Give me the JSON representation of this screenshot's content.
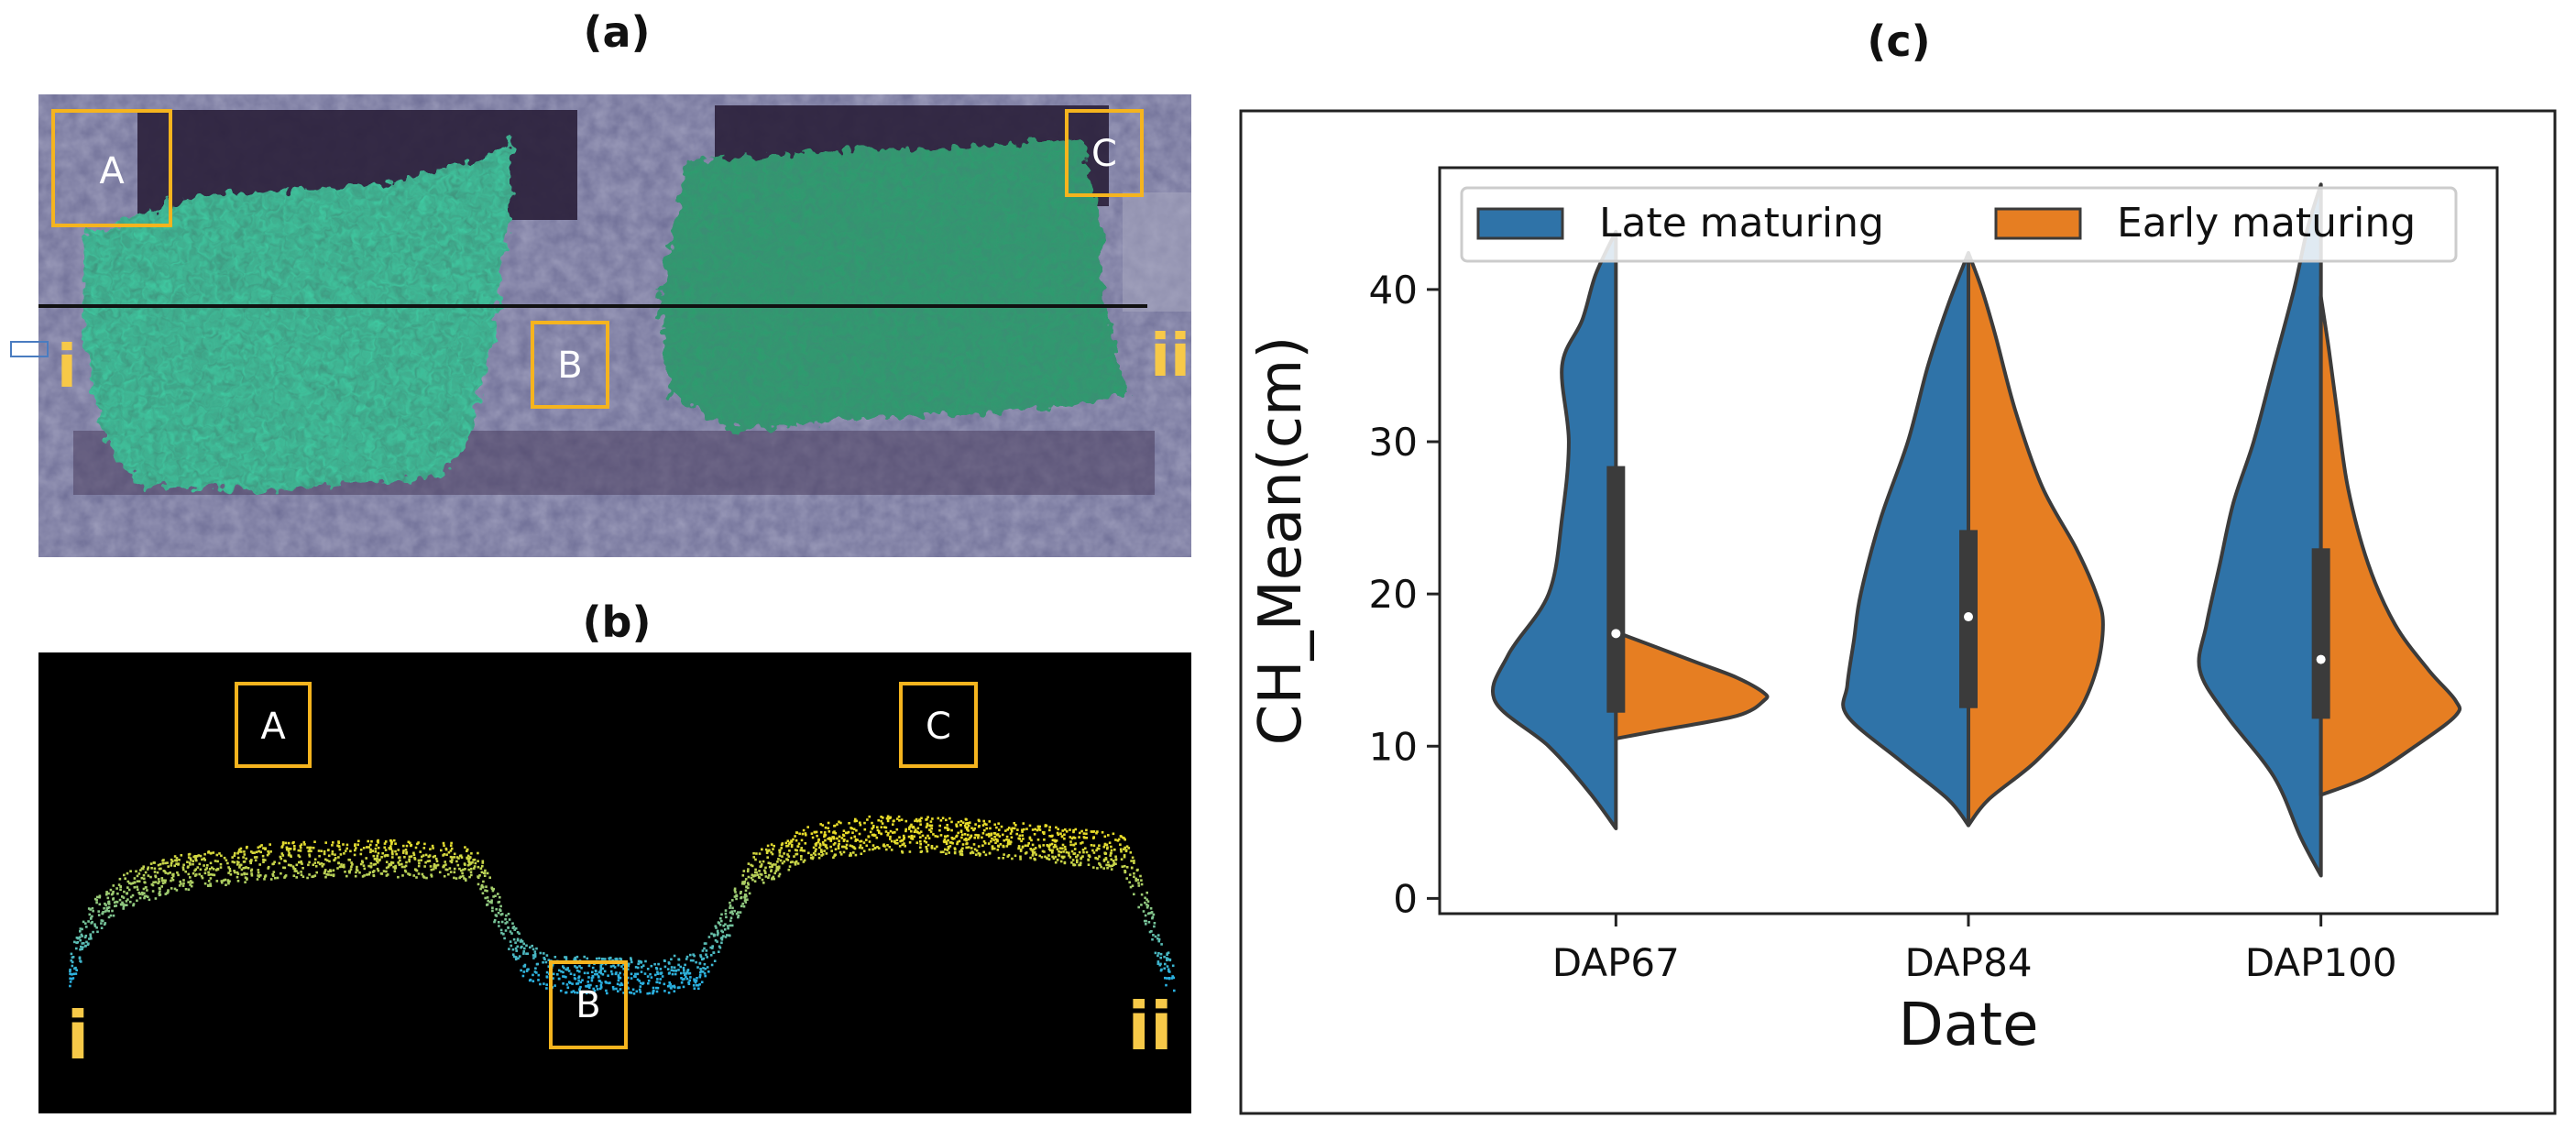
{
  "panels": {
    "a": {
      "title": "(a)"
    },
    "b": {
      "title": "(b)"
    },
    "c": {
      "title": "(c)"
    }
  },
  "photo_labels": {
    "box_a": "A",
    "box_b": "B",
    "box_c": "C",
    "end_left": "i",
    "end_right": "ii"
  },
  "profile_labels": {
    "box_a": "A",
    "box_b": "B",
    "box_c": "C",
    "end_left": "i",
    "end_right": "ii"
  },
  "colors": {
    "late": "#2f73a8",
    "early": "#e67e22",
    "box": "#f5b41e",
    "violin_edge": "#3b3b3b",
    "photo_bg": "#6a6a90",
    "canopy": "#35c39a",
    "canopy_dark": "#1f8a5a",
    "point_high": "#e8dc2a",
    "point_low": "#2ab0e0"
  },
  "chart_data": {
    "type": "violin",
    "split": true,
    "title": "",
    "xlabel": "Date",
    "ylabel": "CH_Mean(cm)",
    "categories": [
      "DAP67",
      "DAP84",
      "DAP100"
    ],
    "ylim": [
      -1,
      48
    ],
    "yticks": [
      0,
      10,
      20,
      30,
      40
    ],
    "legend": {
      "placement": "top",
      "columns": 2,
      "entries": [
        "Late maturing",
        "Early maturing"
      ]
    },
    "series": [
      {
        "name": "Late maturing",
        "side": "left",
        "color": "#2f73a8",
        "range": [
          [
            4.6,
            43.8
          ],
          [
            4.8,
            42.4
          ],
          [
            1.5,
            46.9
          ]
        ],
        "density": [
          [
            [
              4.6,
              0
            ],
            [
              7,
              0.02
            ],
            [
              10,
              0.05
            ],
            [
              13,
              0.09
            ],
            [
              16,
              0.08
            ],
            [
              20,
              0.05
            ],
            [
              25,
              0.04
            ],
            [
              30,
              0.035
            ],
            [
              35,
              0.04
            ],
            [
              38,
              0.025
            ],
            [
              41,
              0.015
            ],
            [
              43.8,
              0
            ]
          ],
          [
            [
              4.8,
              0
            ],
            [
              6.5,
              0.015
            ],
            [
              9,
              0.05
            ],
            [
              12,
              0.09
            ],
            [
              14,
              0.09
            ],
            [
              17,
              0.085
            ],
            [
              20,
              0.08
            ],
            [
              25,
              0.065
            ],
            [
              30,
              0.045
            ],
            [
              35,
              0.03
            ],
            [
              39,
              0.015
            ],
            [
              42.4,
              0
            ]
          ],
          [
            [
              1.5,
              0
            ],
            [
              4,
              0.015
            ],
            [
              8,
              0.035
            ],
            [
              12,
              0.07
            ],
            [
              15,
              0.09
            ],
            [
              18,
              0.085
            ],
            [
              22,
              0.075
            ],
            [
              26,
              0.065
            ],
            [
              30,
              0.05
            ],
            [
              35,
              0.035
            ],
            [
              40,
              0.02
            ],
            [
              44,
              0.01
            ],
            [
              46.9,
              0
            ]
          ]
        ],
        "box": [
          {
            "q1": 12.2,
            "median": 17.4,
            "q3": 28.4
          },
          {
            "q1": 12.5,
            "median": 18.5,
            "q3": 24.2
          },
          {
            "q1": 11.8,
            "median": 15.7,
            "q3": 23.0
          }
        ]
      },
      {
        "name": "Early maturing",
        "side": "right",
        "color": "#e67e22",
        "range": [
          [
            10.5,
            17.5
          ],
          [
            4.8,
            42.4
          ],
          [
            6.8,
            39.5
          ]
        ],
        "density": [
          [
            [
              10.5,
              0
            ],
            [
              11,
              0.03
            ],
            [
              12,
              0.09
            ],
            [
              13,
              0.11
            ],
            [
              13.5,
              0.11
            ],
            [
              14.5,
              0.09
            ],
            [
              15.5,
              0.06
            ],
            [
              16.5,
              0.03
            ],
            [
              17.5,
              0
            ]
          ],
          [
            [
              4.8,
              0
            ],
            [
              6.5,
              0.015
            ],
            [
              9,
              0.05
            ],
            [
              12,
              0.08
            ],
            [
              15,
              0.095
            ],
            [
              18,
              0.1
            ],
            [
              20,
              0.095
            ],
            [
              23,
              0.08
            ],
            [
              27,
              0.055
            ],
            [
              32,
              0.035
            ],
            [
              37,
              0.02
            ],
            [
              40,
              0.01
            ],
            [
              42.4,
              0
            ]
          ],
          [
            [
              6.8,
              0
            ],
            [
              8,
              0.035
            ],
            [
              10,
              0.07
            ],
            [
              12,
              0.1
            ],
            [
              13,
              0.1
            ],
            [
              15,
              0.08
            ],
            [
              18,
              0.055
            ],
            [
              22,
              0.035
            ],
            [
              27,
              0.02
            ],
            [
              32,
              0.012
            ],
            [
              36,
              0.006
            ],
            [
              39.5,
              0
            ]
          ]
        ]
      }
    ]
  }
}
